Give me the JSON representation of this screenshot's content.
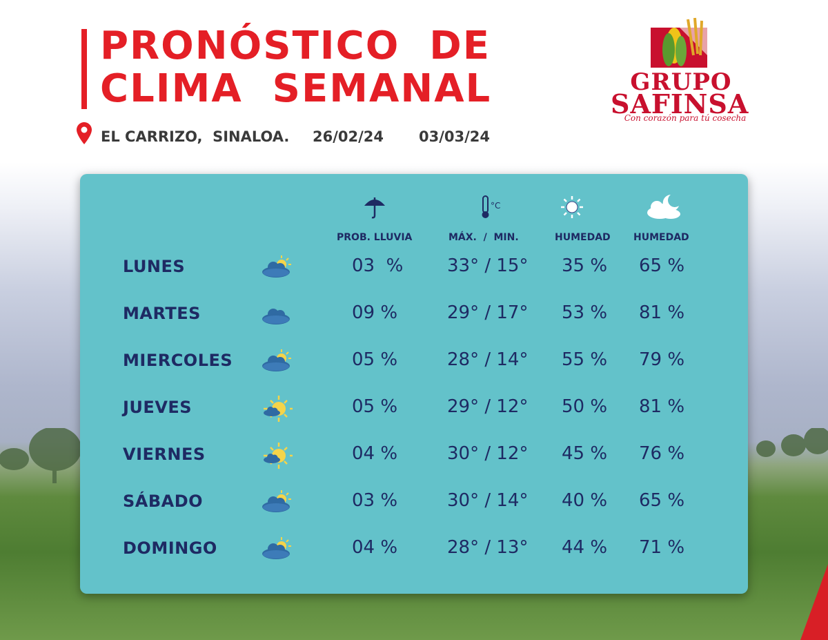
{
  "header": {
    "title_line1": "PRONÓSTICO  DE",
    "title_line2": "CLIMA  SEMANAL",
    "location": "EL CARRIZO,  SINALOA.",
    "date_start": "26/02/24",
    "date_end": "03/03/24"
  },
  "logo": {
    "line1": "GRUPO",
    "line2": "SAFINSA",
    "tagline": "Con corazón para tú cosecha"
  },
  "colors": {
    "title_red": "#e41f26",
    "card_teal": "#63c2ca",
    "text_navy": "#1e2a63"
  },
  "columns": [
    {
      "label": "PROB. LLUVIA",
      "icon": "umbrella-icon"
    },
    {
      "label": "MÁX.  /  MIN.",
      "icon": "thermometer-celsius-icon"
    },
    {
      "label": "HUMEDAD",
      "icon": "sun-icon"
    },
    {
      "label": "HUMEDAD",
      "icon": "night-cloud-moon-icon"
    }
  ],
  "days": [
    {
      "name": "LUNES",
      "condition": "partly-cloudy-icon",
      "rain": "03  %",
      "temp": "33° / 15°",
      "hum_day": "35 %",
      "hum_night": "65 %"
    },
    {
      "name": "MARTES",
      "condition": "cloudy-icon",
      "rain": "09 %",
      "temp": "29° / 17°",
      "hum_day": "53 %",
      "hum_night": "81 %"
    },
    {
      "name": "MIERCOLES",
      "condition": "partly-cloudy-icon",
      "rain": "05 %",
      "temp": "28° / 14°",
      "hum_day": "55 %",
      "hum_night": "79 %"
    },
    {
      "name": "JUEVES",
      "condition": "mostly-sunny-icon",
      "rain": "05 %",
      "temp": "29° / 12°",
      "hum_day": "50 %",
      "hum_night": "81 %"
    },
    {
      "name": "VIERNES",
      "condition": "mostly-sunny-icon",
      "rain": "04 %",
      "temp": "30° / 12°",
      "hum_day": "45 %",
      "hum_night": "76 %"
    },
    {
      "name": "SÁBADO",
      "condition": "partly-cloudy-icon",
      "rain": "03 %",
      "temp": "30° / 14°",
      "hum_day": "40 %",
      "hum_night": "65 %"
    },
    {
      "name": "DOMINGO",
      "condition": "partly-cloudy-icon",
      "rain": "04 %",
      "temp": "28° / 13°",
      "hum_day": "44 %",
      "hum_night": "71 %"
    }
  ]
}
